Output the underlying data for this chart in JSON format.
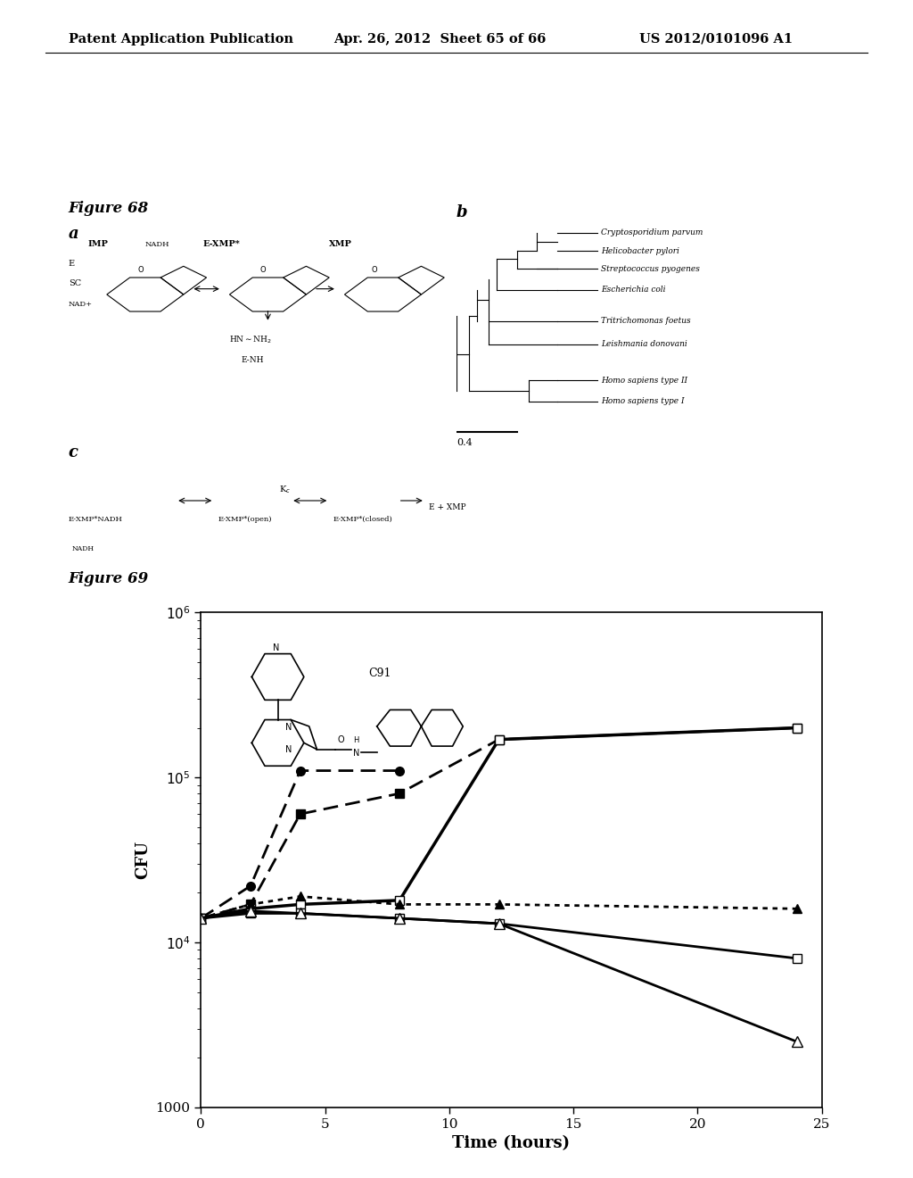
{
  "header_left": "Patent Application Publication",
  "header_mid": "Apr. 26, 2012  Sheet 65 of 66",
  "header_right": "US 2012/0101096 A1",
  "fig68_label": "Figure 68",
  "fig69_label": "Figure 69",
  "xlabel": "Time (hours)",
  "ylabel": "CFU",
  "xlim": [
    0,
    25
  ],
  "ylim_log": [
    1000,
    1000000
  ],
  "xticks": [
    0,
    5,
    10,
    15,
    20,
    25
  ],
  "series": [
    {
      "name": "filled_circle_dashed",
      "x": [
        0,
        2,
        4,
        8
      ],
      "y": [
        14000,
        22000,
        110000,
        110000
      ],
      "linestyle": "dashed",
      "marker": "o",
      "markerfill": "black",
      "linewidth": 2.0,
      "markersize": 7
    },
    {
      "name": "filled_square_dashed",
      "x": [
        0,
        2,
        4,
        8,
        12,
        24
      ],
      "y": [
        14000,
        17000,
        60000,
        80000,
        170000,
        200000
      ],
      "linestyle": "dashed",
      "marker": "s",
      "markerfill": "black",
      "linewidth": 2.0,
      "markersize": 7
    },
    {
      "name": "open_square_solid_up",
      "x": [
        0,
        2,
        4,
        8,
        12,
        24
      ],
      "y": [
        14000,
        16000,
        17000,
        18000,
        170000,
        200000
      ],
      "linestyle": "solid",
      "marker": "s",
      "markerfill": "white",
      "linewidth": 2.5,
      "markersize": 7
    },
    {
      "name": "open_square_solid_down",
      "x": [
        0,
        2,
        4,
        8,
        12,
        24
      ],
      "y": [
        14000,
        15000,
        15000,
        14000,
        13000,
        8000
      ],
      "linestyle": "solid",
      "marker": "s",
      "markerfill": "white",
      "linewidth": 2.0,
      "markersize": 7
    },
    {
      "name": "filled_triangle_dotted",
      "x": [
        0,
        2,
        4,
        8,
        12,
        24
      ],
      "y": [
        14000,
        17000,
        19000,
        17000,
        17000,
        16000
      ],
      "linestyle": "dotted",
      "marker": "^",
      "markerfill": "black",
      "linewidth": 2.0,
      "markersize": 7
    },
    {
      "name": "open_triangle_solid",
      "x": [
        0,
        2,
        4,
        8,
        12,
        24
      ],
      "y": [
        14000,
        15500,
        15000,
        14000,
        13000,
        2500
      ],
      "linestyle": "solid",
      "marker": "^",
      "markerfill": "white",
      "linewidth": 2.0,
      "markersize": 8
    }
  ],
  "background_color": "#ffffff",
  "annotation_label": "C91",
  "fig68_a_label": "a",
  "fig68_b_label": "b",
  "fig68_c_label": "c"
}
